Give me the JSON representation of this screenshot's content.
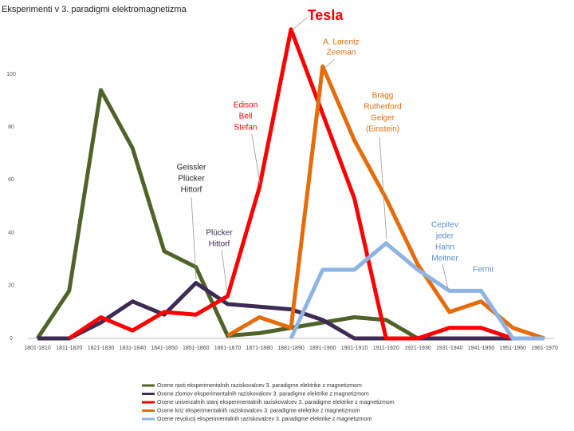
{
  "chart_data": {
    "type": "line",
    "title": "Eksperimenti v 3. paradigmi elektromagnetizma",
    "categories": [
      "1801-1810",
      "1811-1820",
      "1821-1830",
      "1831-1840",
      "1841-1850",
      "1851-1860",
      "1861-1870",
      "1871-1880",
      "1881-1890",
      "1891-1900",
      "1901-1910",
      "1911-1920",
      "1921-1930",
      "1931-1940",
      "1941-1950",
      "1951-1960",
      "1961-1970"
    ],
    "series": [
      {
        "name": "Ocene rasti eksperimentalnih raziskovalcev 3. paradigme elektrike z magnetizmom",
        "color": "#4f6228",
        "values": [
          0,
          18,
          94,
          72,
          33,
          27,
          1,
          2,
          4,
          6,
          8,
          7,
          0,
          0,
          0,
          0,
          0
        ]
      },
      {
        "name": "Ocene zlomov eksperimentalnih raziskovalcev 3. paradigme elektrike z magnetizmom",
        "color": "#3d2b56",
        "values": [
          0,
          0,
          6,
          14,
          9,
          21,
          13,
          12,
          11,
          7,
          0,
          0,
          0,
          0,
          0,
          0,
          0
        ]
      },
      {
        "name": "Ocene univerzalnih stanj eksperimentalnih raziskovalcev 3. paradigme elektrike z magnetizmom",
        "color": "#ff0000",
        "values": [
          null,
          0,
          8,
          3,
          10,
          9,
          16,
          57,
          117,
          85,
          53,
          0,
          0,
          4,
          4,
          0,
          null
        ]
      },
      {
        "name": "Ocene kriz eksperimentalnih raziskovalcev 3. paradigme elektrike z magnetizmom",
        "color": "#e46c0a",
        "values": [
          null,
          null,
          null,
          null,
          null,
          null,
          1,
          8,
          4,
          103,
          75,
          53,
          28,
          10,
          14,
          4,
          0
        ]
      },
      {
        "name": "Ocene revolucij eksperimentalnih raziskovalcev 3. paradigme elektrike z magnetizmom",
        "color": "#8eb4e3",
        "values": [
          null,
          null,
          null,
          null,
          null,
          null,
          null,
          null,
          0,
          26,
          26,
          36,
          26,
          18,
          18,
          0,
          0
        ]
      }
    ],
    "ylim": [
      0,
      120
    ],
    "yticks": [
      0,
      20,
      40,
      60,
      80,
      100
    ],
    "annotations": [
      {
        "lines": [
          "Tesla"
        ],
        "color": "#ff0000"
      },
      {
        "lines": [
          "A. Lorentz",
          "Zeeman"
        ],
        "color": "#e46c0a"
      },
      {
        "lines": [
          "Edison",
          "Bell",
          "Stefan"
        ],
        "color": "#ff0000"
      },
      {
        "lines": [
          "Bragg",
          "Rutherford",
          "Geiger",
          "(Einstein)"
        ],
        "color": "#e46c0a"
      },
      {
        "lines": [
          "Geissler",
          "Plücker",
          "Hittorf"
        ],
        "color": "#222222"
      },
      {
        "lines": [
          "Plücker",
          "Hittorf"
        ],
        "color": "#3d2b56"
      },
      {
        "lines": [
          "Cepitev",
          "jeder",
          "Hahn",
          "Meitner"
        ],
        "color": "#5b8ec9"
      },
      {
        "lines": [
          "Fermi"
        ],
        "color": "#5b8ec9"
      }
    ]
  }
}
